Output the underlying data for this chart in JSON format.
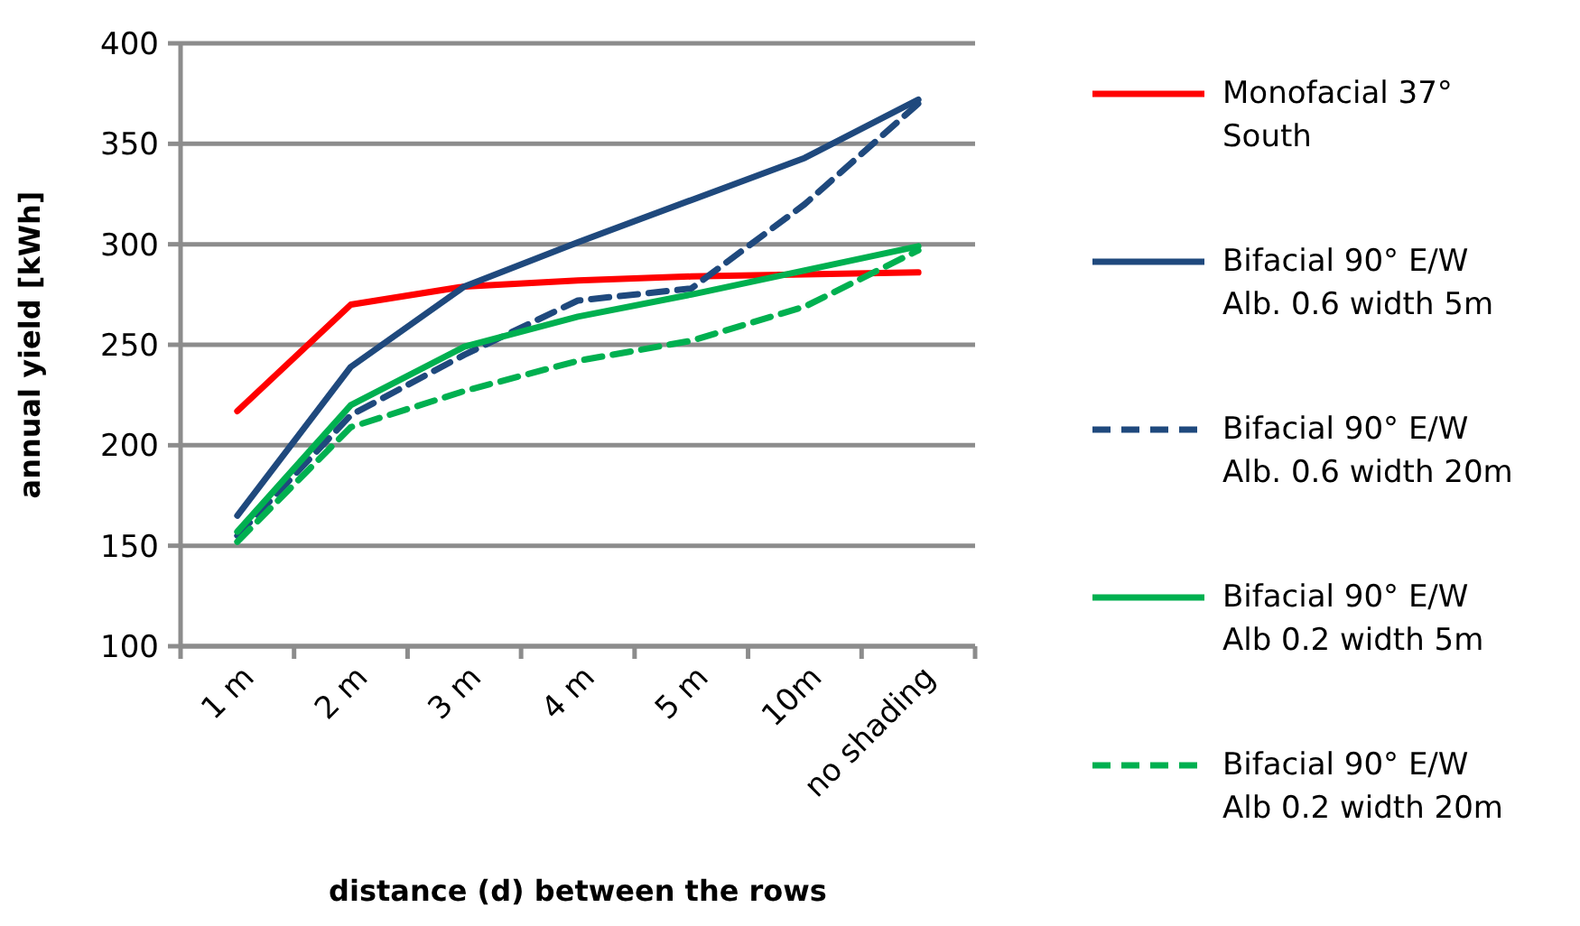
{
  "chart_data": {
    "type": "line",
    "xlabel": "distance (d) between the rows",
    "ylabel": "annual yield [kWh]",
    "categories": [
      "1 m",
      "2 m",
      "3 m",
      "4 m",
      "5 m",
      "10m",
      "no shading"
    ],
    "ylim": [
      100,
      400
    ],
    "yticks": [
      100,
      150,
      200,
      250,
      300,
      350,
      400
    ],
    "grid": "y",
    "legend": "right",
    "marker": "none",
    "series": [
      {
        "name": "Monofacial 37° South",
        "color": "#ff0000",
        "line_style": "solid",
        "values": [
          217,
          270,
          279,
          282,
          284,
          285,
          286
        ]
      },
      {
        "name": "Bifacial 90° E/W Alb. 0.6 width 5m",
        "color": "#1f497d",
        "line_style": "solid",
        "values": [
          165,
          239,
          279,
          301,
          322,
          343,
          372
        ]
      },
      {
        "name": "Bifacial 90° E/W Alb. 0.6 width 20m",
        "color": "#1f497d",
        "line_style": "dashed",
        "values": [
          155,
          215,
          245,
          272,
          278,
          320,
          370
        ]
      },
      {
        "name": "Bifacial 90° E/W Alb 0.2 width 5m",
        "color": "#00b050",
        "line_style": "solid",
        "values": [
          157,
          220,
          249,
          264,
          275,
          287,
          299
        ]
      },
      {
        "name": "Bifacial 90° E/W Alb 0.2 width 20m",
        "color": "#00b050",
        "line_style": "dashed",
        "values": [
          152,
          209,
          227,
          242,
          252,
          269,
          297
        ]
      }
    ]
  }
}
